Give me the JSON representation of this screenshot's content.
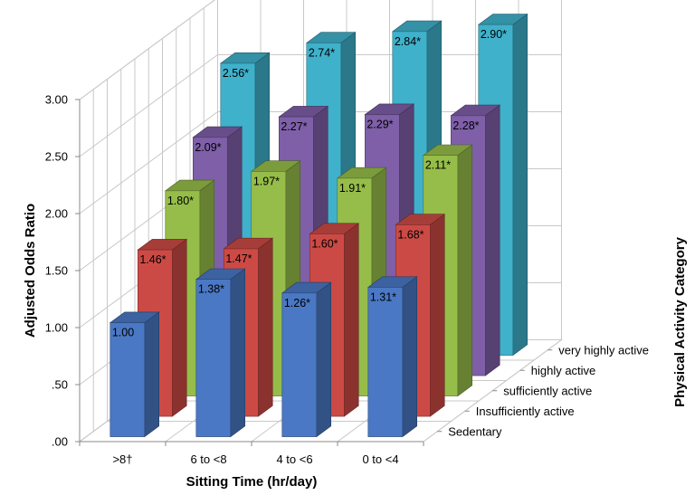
{
  "chart_data": {
    "type": "bar",
    "subtype": "3d-clustered",
    "xlabel": "Sitting Time (hr/day)",
    "ylabel": "Adjusted Odds Ratio",
    "zlabel": "Physical Activity Category",
    "categories": [
      ">8†",
      "6 to <8",
      "4 to <6",
      "0 to <4"
    ],
    "ylim": [
      0,
      3
    ],
    "yticks": [
      ".00",
      ".50",
      "1.00",
      "1.50",
      "2.00",
      "2.50",
      "3.00"
    ],
    "grid": true,
    "series": [
      {
        "name": "Sedentary",
        "values": [
          1.0,
          1.38,
          1.26,
          1.31
        ],
        "labels": [
          "1.00",
          "1.38*",
          "1.26*",
          "1.31*"
        ],
        "color": "#4a78c4"
      },
      {
        "name": "Insufficiently active",
        "values": [
          1.46,
          1.47,
          1.6,
          1.68
        ],
        "labels": [
          "1.46*",
          "1.47*",
          "1.60*",
          "1.68*"
        ],
        "color": "#cc4a45"
      },
      {
        "name": "sufficiently active",
        "values": [
          1.8,
          1.97,
          1.91,
          2.11
        ],
        "labels": [
          "1.80*",
          "1.97*",
          "1.91*",
          "2.11*"
        ],
        "color": "#96bd4a"
      },
      {
        "name": "highly active",
        "values": [
          2.09,
          2.27,
          2.29,
          2.28
        ],
        "labels": [
          "2.09*",
          "2.27*",
          "2.29*",
          "2.28*"
        ],
        "color": "#7e5fa8"
      },
      {
        "name": "very highly active",
        "values": [
          2.56,
          2.74,
          2.84,
          2.9
        ],
        "labels": [
          "2.56*",
          "2.74*",
          "2.84*",
          "2.90*"
        ],
        "color": "#3fb1cb"
      }
    ]
  }
}
